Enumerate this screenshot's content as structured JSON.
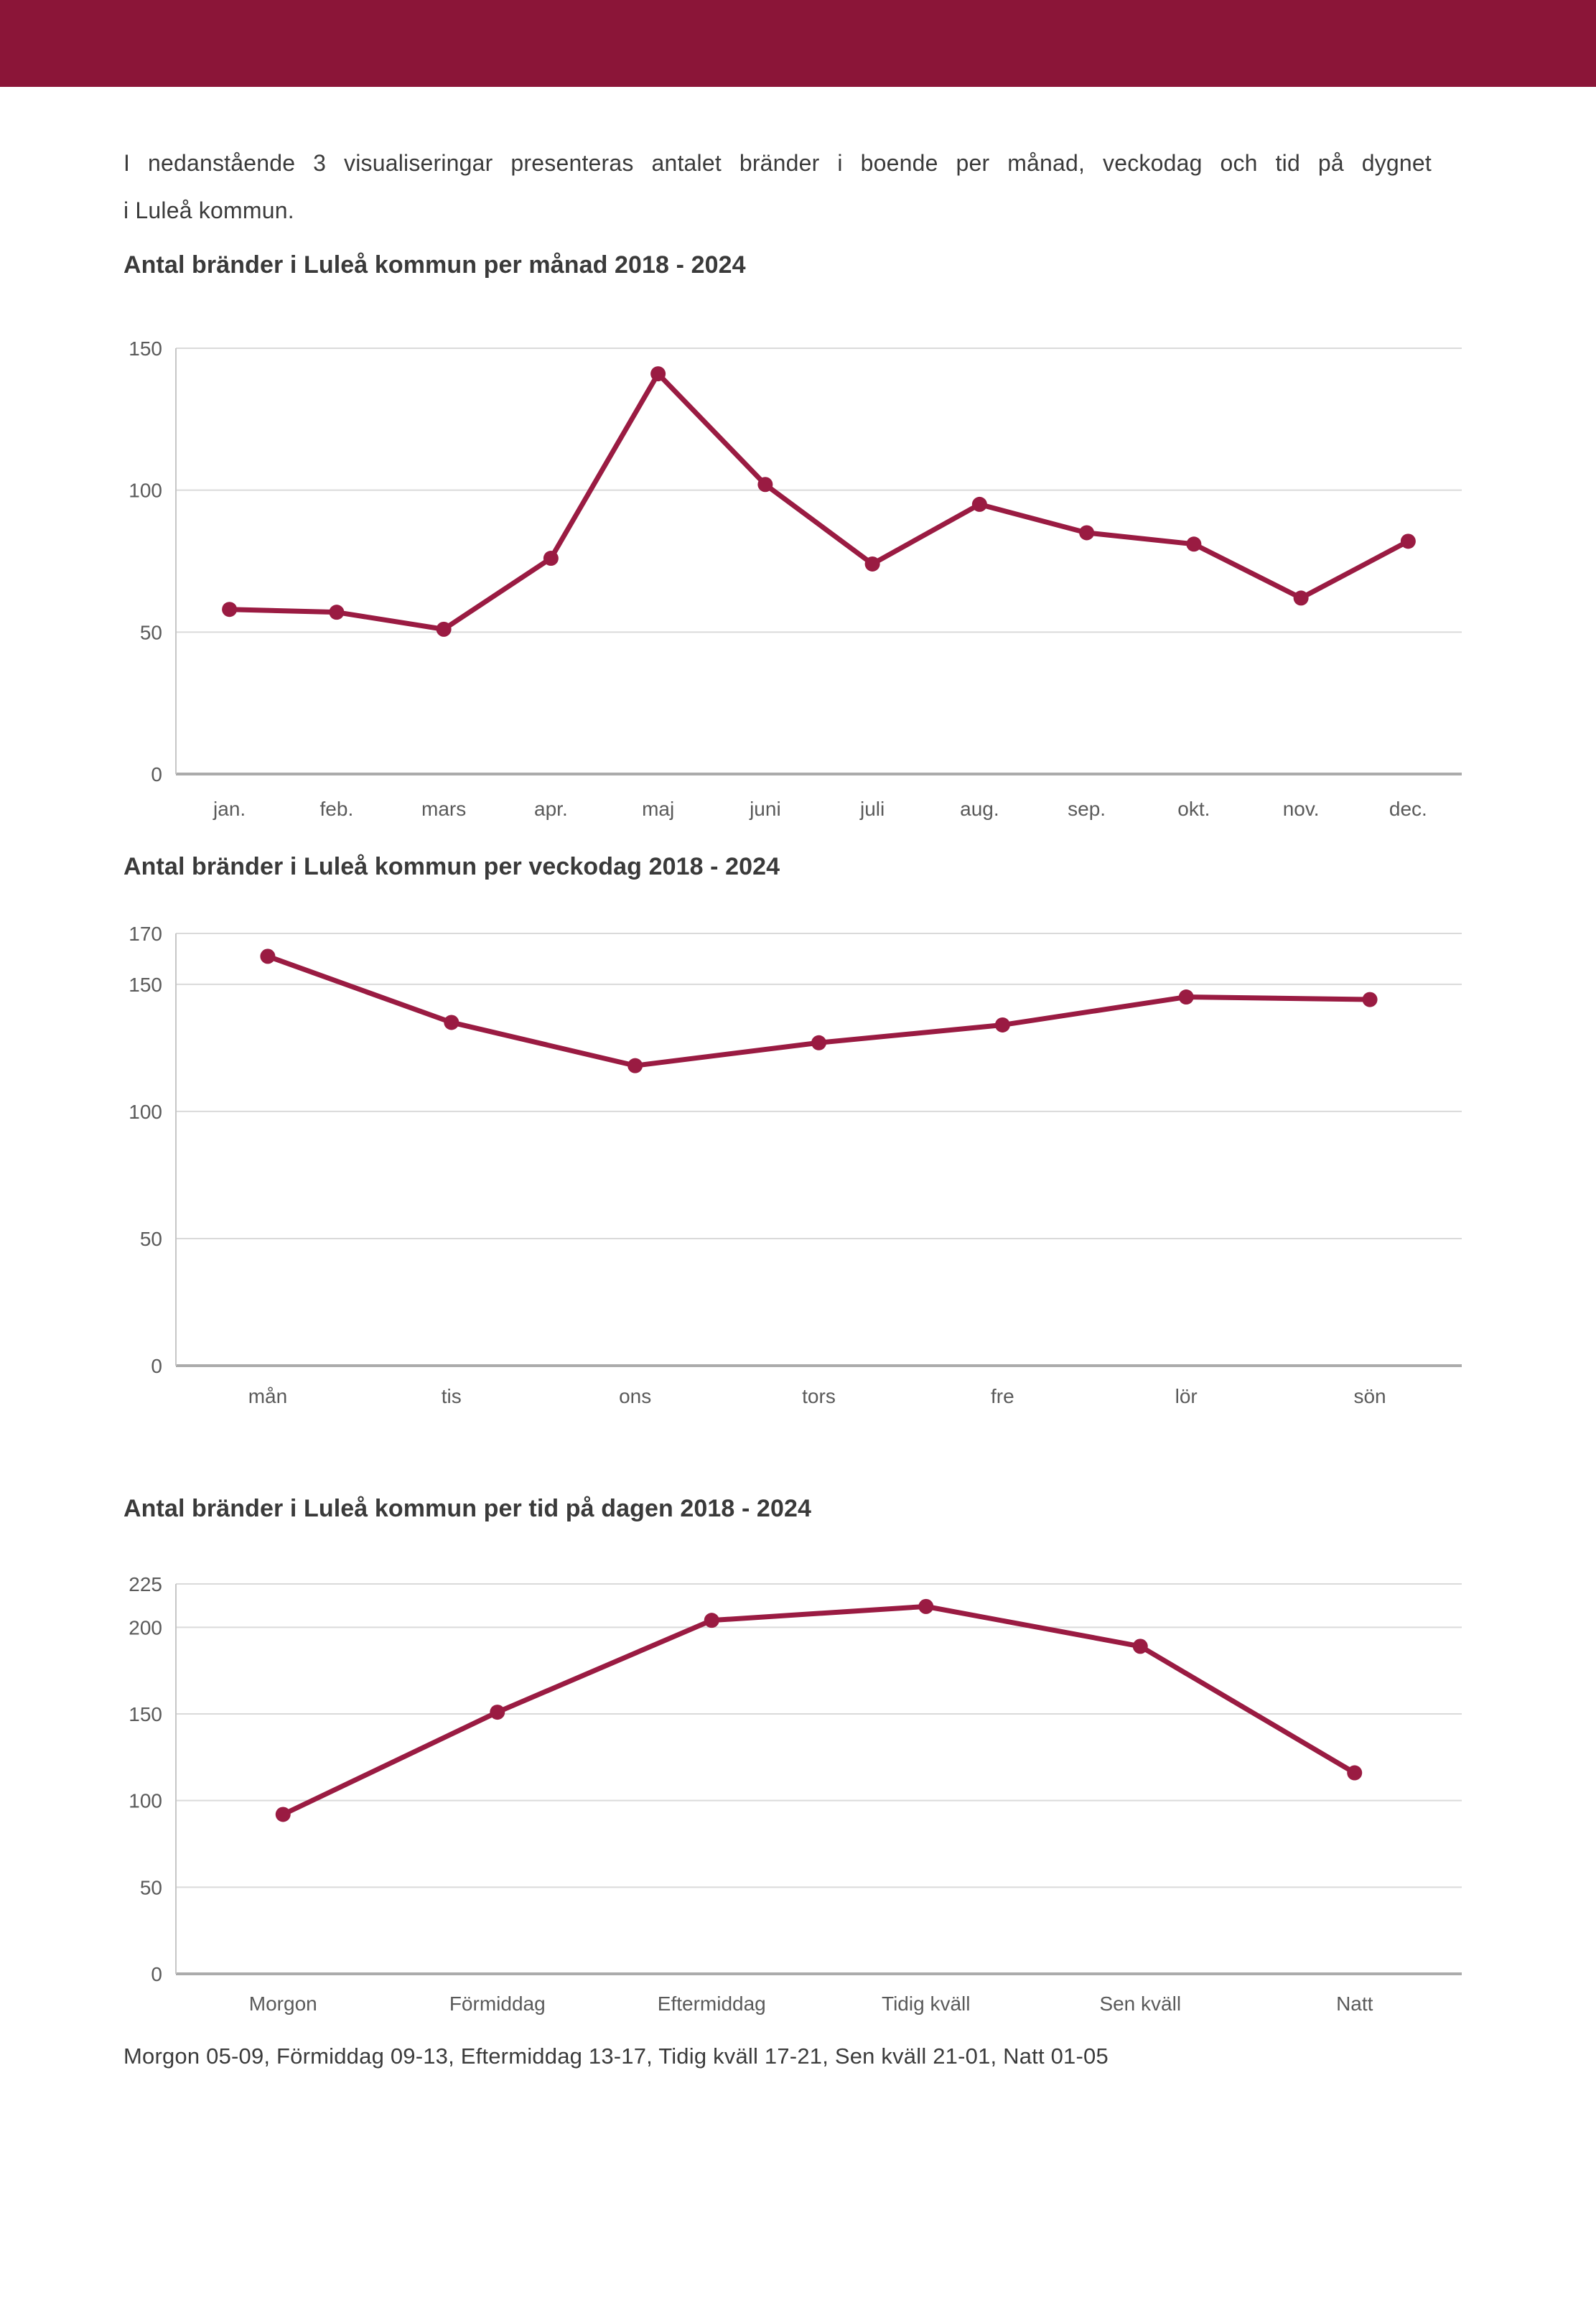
{
  "page": {
    "intro": {
      "line1": "I nedanstående 3 visualiseringar presenteras antalet bränder i boende per månad, veckodag och tid på dygnet",
      "line2": "i Luleå kommun."
    },
    "footer_note": "Morgon 05-09, Förmiddag 09-13, Eftermiddag 13-17, Tidig kväll 17-21, Sen kväll 21-01, Natt 01-05",
    "colors": {
      "header_bar": "#8B1538",
      "line": "#9A1B42",
      "gridline": "#DADADA",
      "zero_axis": "#ABABAB",
      "plot_border": "#C6C6C6",
      "tick_label": "#5A5A5A",
      "title_text": "#3A3A3A"
    }
  },
  "chart_data": [
    {
      "type": "line",
      "title": "Antal bränder i Luleå kommun per månad 2018 - 2024",
      "categories": [
        "jan.",
        "feb.",
        "mars",
        "apr.",
        "maj",
        "juni",
        "juli",
        "aug.",
        "sep.",
        "okt.",
        "nov.",
        "dec."
      ],
      "values": [
        58,
        57,
        51,
        76,
        141,
        102,
        74,
        95,
        85,
        81,
        62,
        82
      ],
      "yticks": [
        0,
        50,
        100,
        150
      ],
      "ylim": [
        0,
        150
      ],
      "xlabel": "",
      "ylabel": "",
      "grid": true,
      "legend": "none"
    },
    {
      "type": "line",
      "title": "Antal bränder i Luleå kommun per veckodag 2018 - 2024",
      "categories": [
        "mån",
        "tis",
        "ons",
        "tors",
        "fre",
        "lör",
        "sön"
      ],
      "values": [
        161,
        135,
        118,
        127,
        134,
        145,
        144
      ],
      "yticks": [
        0,
        50,
        100,
        150,
        170
      ],
      "ylim": [
        0,
        170
      ],
      "xlabel": "",
      "ylabel": "",
      "grid": true,
      "legend": "none"
    },
    {
      "type": "line",
      "title": "Antal bränder i Luleå kommun per tid på dagen 2018 - 2024",
      "categories": [
        "Morgon",
        "Förmiddag",
        "Eftermiddag",
        "Tidig kväll",
        "Sen kväll",
        "Natt"
      ],
      "values": [
        92,
        151,
        204,
        212,
        189,
        116
      ],
      "yticks": [
        0,
        50,
        100,
        150,
        200,
        225
      ],
      "ylim": [
        0,
        225
      ],
      "xlabel": "",
      "ylabel": "",
      "grid": true,
      "legend": "none"
    }
  ]
}
